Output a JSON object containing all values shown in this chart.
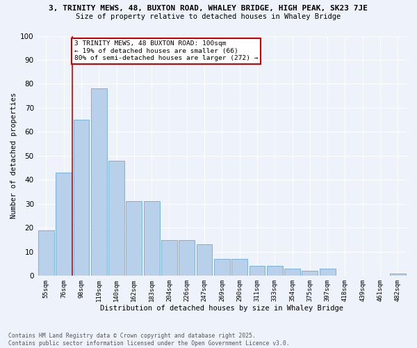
{
  "title1": "3, TRINITY MEWS, 48, BUXTON ROAD, WHALEY BRIDGE, HIGH PEAK, SK23 7JE",
  "title2": "Size of property relative to detached houses in Whaley Bridge",
  "xlabel": "Distribution of detached houses by size in Whaley Bridge",
  "ylabel": "Number of detached properties",
  "categories": [
    "55sqm",
    "76sqm",
    "98sqm",
    "119sqm",
    "140sqm",
    "162sqm",
    "183sqm",
    "204sqm",
    "226sqm",
    "247sqm",
    "269sqm",
    "290sqm",
    "311sqm",
    "333sqm",
    "354sqm",
    "375sqm",
    "397sqm",
    "418sqm",
    "439sqm",
    "461sqm",
    "482sqm"
  ],
  "values": [
    19,
    43,
    65,
    78,
    48,
    31,
    31,
    15,
    15,
    13,
    7,
    7,
    4,
    4,
    3,
    2,
    3,
    0,
    0,
    0,
    1
  ],
  "bar_color": "#b8d0ea",
  "bar_edge_color": "#6aaad4",
  "vline_color": "#cc0000",
  "annotation_text": "3 TRINITY MEWS, 48 BUXTON ROAD: 100sqm\n← 19% of detached houses are smaller (66)\n80% of semi-detached houses are larger (272) →",
  "annotation_box_color": "#ffffff",
  "annotation_box_edge": "#cc0000",
  "ylim": [
    0,
    100
  ],
  "background_color": "#eef2fa",
  "grid_color": "#ffffff",
  "footer1": "Contains HM Land Registry data © Crown copyright and database right 2025.",
  "footer2": "Contains public sector information licensed under the Open Government Licence v3.0."
}
